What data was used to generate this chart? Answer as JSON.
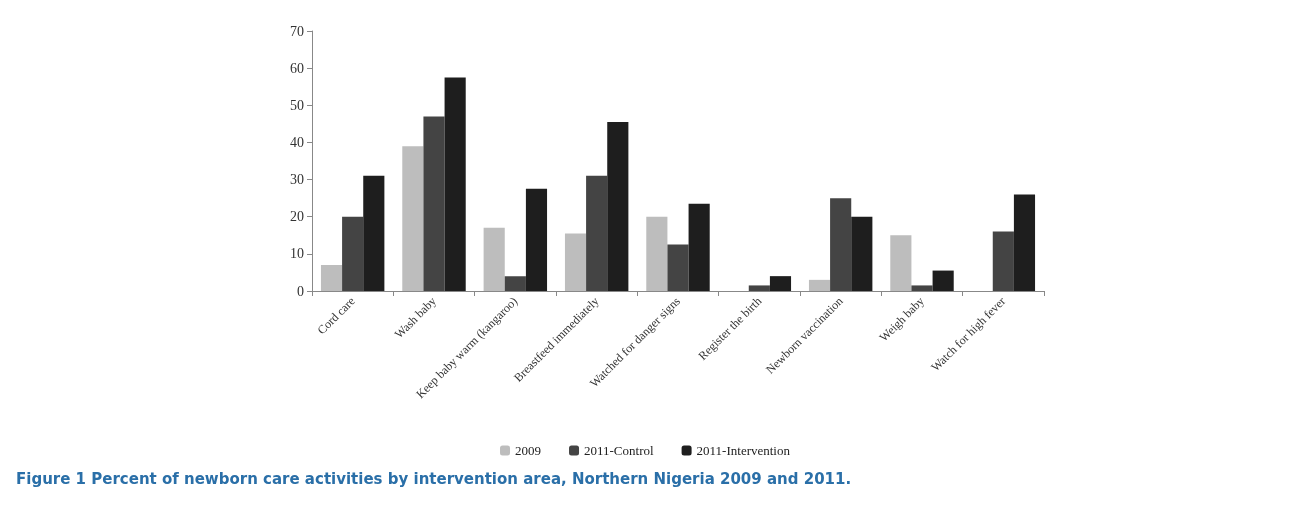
{
  "chart_data": {
    "type": "bar",
    "categories": [
      "Cord care",
      "Wash baby",
      "Keep baby warm (kangaroo)",
      "Breastfeed immediately",
      "Watched for danger signs",
      "Register the birth",
      "Newborn vaccination",
      "Weigh baby",
      "Watch for high fever"
    ],
    "series": [
      {
        "name": "2009",
        "color": "#bdbdbd",
        "values": [
          7,
          39,
          17,
          15.5,
          20,
          0,
          3,
          15,
          0
        ]
      },
      {
        "name": "2011-Control",
        "color": "#444444",
        "values": [
          20,
          47,
          4,
          31,
          12.5,
          1.5,
          25,
          1.5,
          16
        ]
      },
      {
        "name": "2011-Intervention",
        "color": "#1e1e1e",
        "values": [
          31,
          57.5,
          27.5,
          45.5,
          23.5,
          4,
          20,
          5.5,
          26
        ]
      }
    ],
    "ylim": [
      0,
      70
    ],
    "yticks": [
      0,
      10,
      20,
      30,
      40,
      50,
      60,
      70
    ],
    "grid": false,
    "legend": "bottom",
    "annotations": [
      "Figure 1 Percent of newborn care activities by intervention area, Northern Nigeria 2009 and 2011."
    ]
  }
}
